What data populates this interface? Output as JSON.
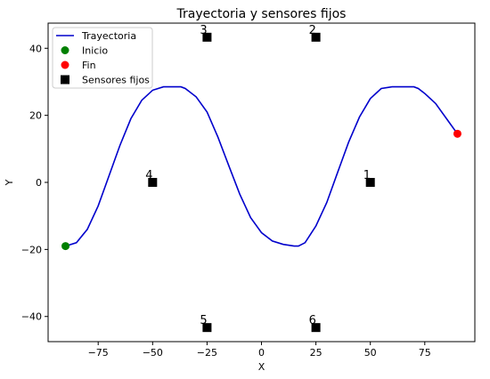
{
  "chart_data": {
    "type": "scatter",
    "title": "Trayectoria y sensores fijos",
    "xlabel": "X",
    "ylabel": "Y",
    "xlim": [
      -98,
      98
    ],
    "ylim": [
      -47.5,
      47.5
    ],
    "xticks": [
      -75,
      -50,
      -25,
      0,
      25,
      50,
      75
    ],
    "yticks": [
      -40,
      -20,
      0,
      20,
      40
    ],
    "grid": false,
    "legend_position": "top-left",
    "legend": [
      {
        "label": "Trayectoria",
        "kind": "line",
        "color": "#0000cc"
      },
      {
        "label": "Inicio",
        "kind": "circle",
        "color": "#008000"
      },
      {
        "label": "Fin",
        "kind": "circle",
        "color": "#ff0000"
      },
      {
        "label": "Sensores fijos",
        "kind": "square",
        "color": "#000000"
      }
    ],
    "series": [
      {
        "name": "Trayectoria",
        "color": "#0000cc",
        "x": [
          -90,
          -85,
          -80,
          -75,
          -70,
          -65,
          -60,
          -55,
          -50,
          -45,
          -40,
          -37,
          -35,
          -30,
          -25,
          -20,
          -15,
          -10,
          -5,
          0,
          5,
          10,
          15,
          17,
          20,
          25,
          30,
          35,
          40,
          45,
          50,
          55,
          60,
          65,
          70,
          72,
          75,
          80,
          85,
          90
        ],
        "y": [
          -19,
          -18,
          -14,
          -7,
          2,
          11,
          19,
          24.5,
          27.5,
          28.5,
          28.5,
          28.5,
          28,
          25.5,
          21,
          13.5,
          5,
          -3.5,
          -10.5,
          -15,
          -17.5,
          -18.5,
          -19,
          -19,
          -18,
          -13,
          -6,
          3,
          12,
          19.5,
          25,
          28,
          28.5,
          28.5,
          28.5,
          28,
          26.5,
          23.5,
          19,
          14.5
        ]
      }
    ],
    "start": {
      "name": "Inicio",
      "x": -90,
      "y": -19,
      "color": "#008000"
    },
    "end": {
      "name": "Fin",
      "x": 90,
      "y": 14.5,
      "color": "#ff0000"
    },
    "sensors": [
      {
        "label": "1",
        "x": 50,
        "y": 0
      },
      {
        "label": "2",
        "x": 25,
        "y": 43.3
      },
      {
        "label": "3",
        "x": -25,
        "y": 43.3
      },
      {
        "label": "4",
        "x": -50,
        "y": 0
      },
      {
        "label": "5",
        "x": -25,
        "y": -43.3
      },
      {
        "label": "6",
        "x": 25,
        "y": -43.3
      }
    ]
  }
}
